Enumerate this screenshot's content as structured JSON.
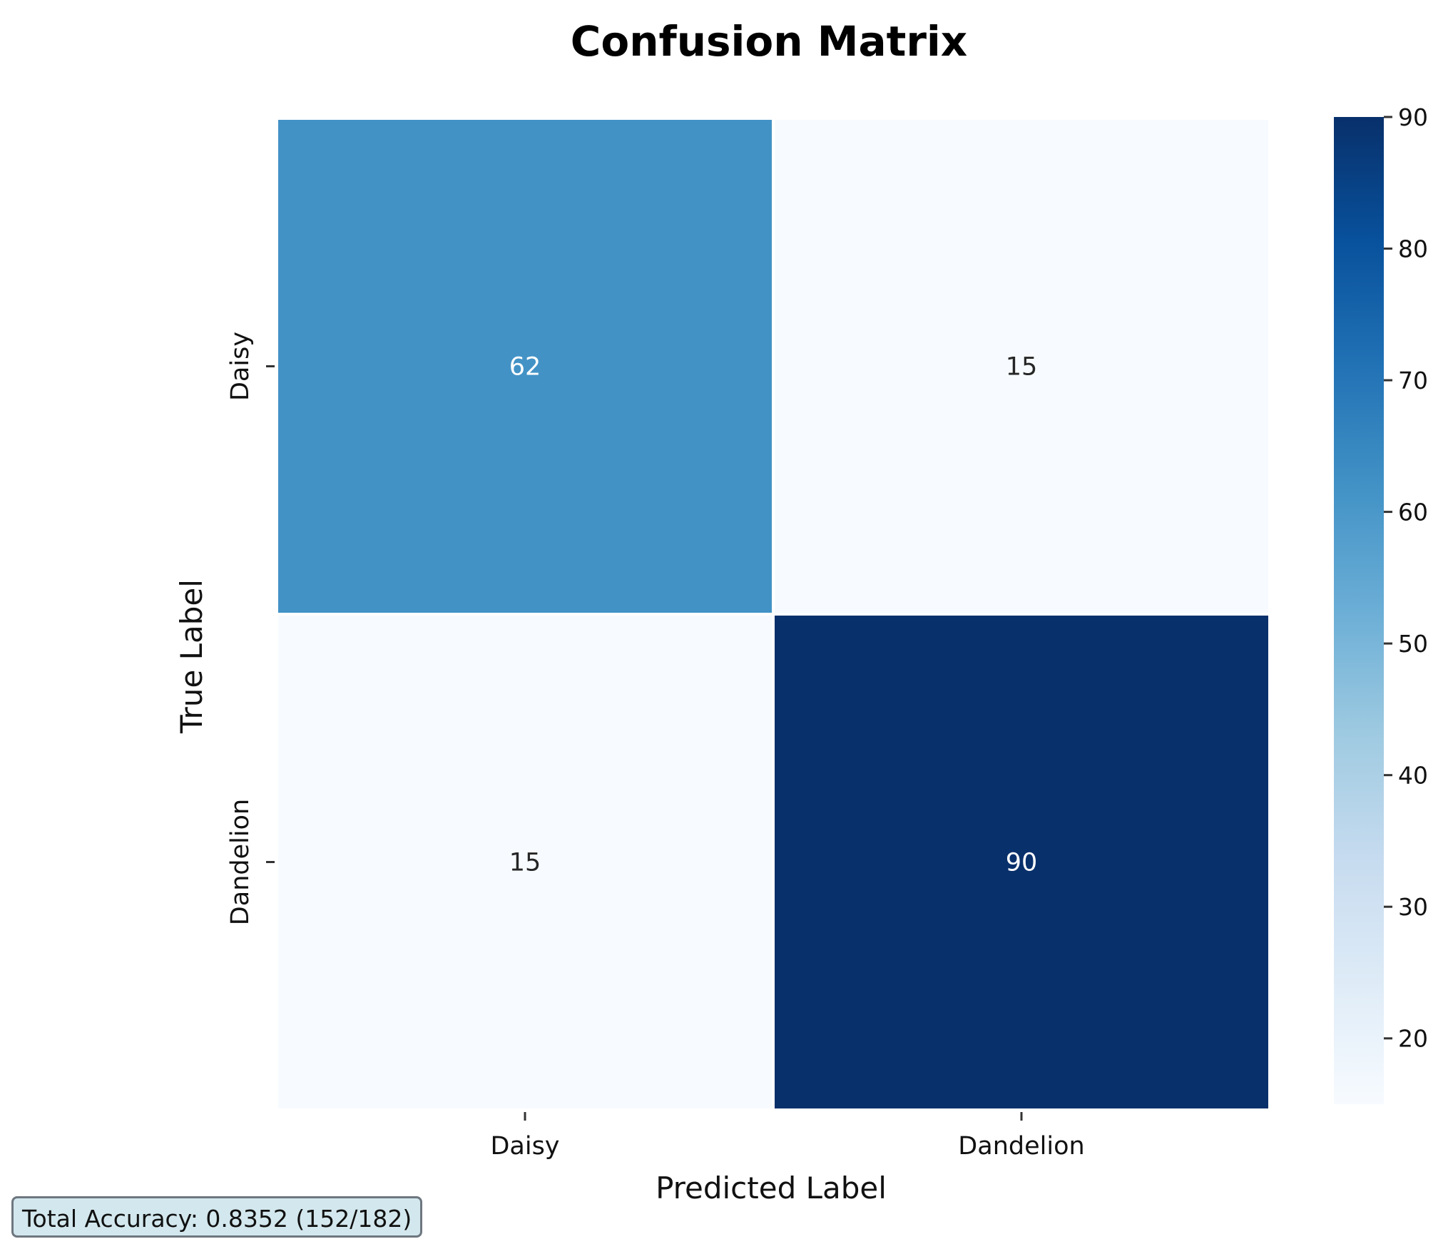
{
  "chart_data": {
    "type": "heatmap",
    "title": "Confusion Matrix",
    "xlabel": "Predicted Label",
    "ylabel": "True Label",
    "x_categories": [
      "Daisy",
      "Dandelion"
    ],
    "y_categories": [
      "Daisy",
      "Dandelion"
    ],
    "values": [
      [
        62,
        15
      ],
      [
        15,
        90
      ]
    ],
    "colormap": "Blues",
    "colorbar": {
      "min": 15,
      "max": 90,
      "ticks": [
        20,
        30,
        40,
        50,
        60,
        70,
        80,
        90
      ]
    },
    "grid": false
  },
  "annotation": {
    "accuracy_text": "Total Accuracy: 0.8352 (152/182)"
  }
}
